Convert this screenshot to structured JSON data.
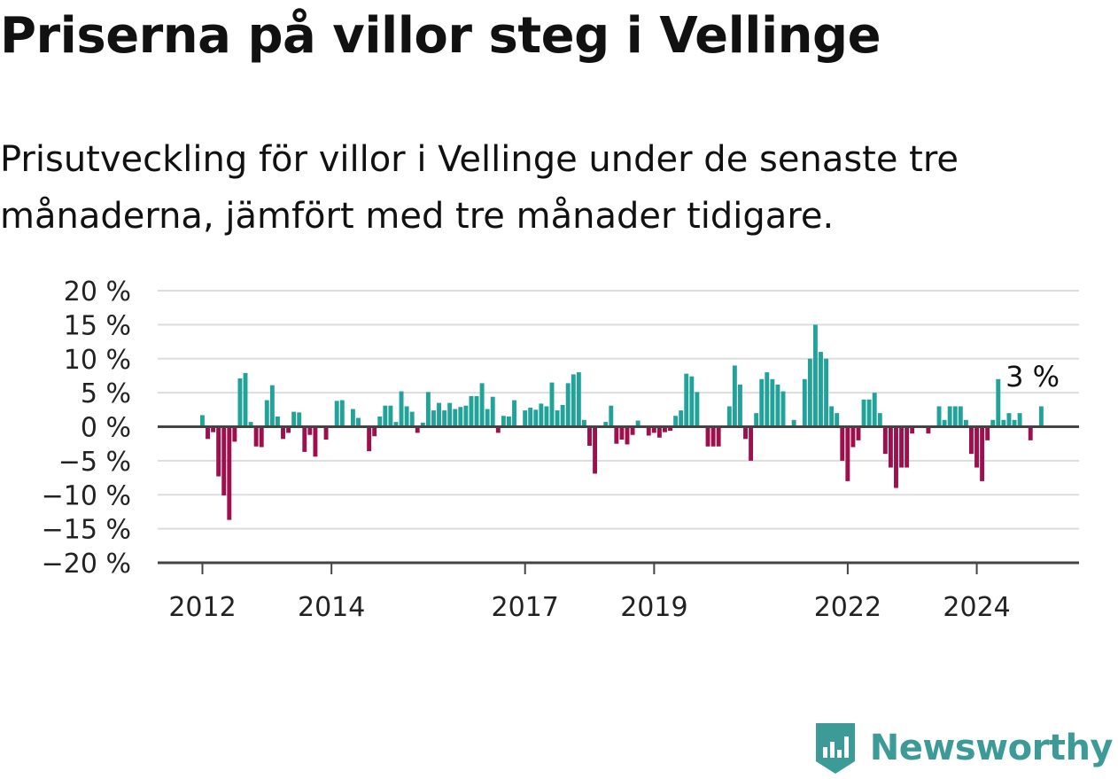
{
  "title": "Priserna på villor steg i Vellinge",
  "subtitle": "Prisutveckling för villor i Vellinge under de senaste tre månaderna, jämfört med tre månader tidigare.",
  "brand": {
    "name": "Newsworthy"
  },
  "colors": {
    "positive": "#21a39a",
    "negative": "#9e0f4e",
    "grid": "#dddddd",
    "axis": "#444444",
    "text": "#222222"
  },
  "chart_data": {
    "type": "bar",
    "y_unit": "%",
    "ylim": [
      -20,
      20
    ],
    "y_ticks": [
      "20 %",
      "15 %",
      "10 %",
      "5 %",
      "0 %",
      "−5 %",
      "−10 %",
      "−15 %",
      "−20 %"
    ],
    "x_ticks": [
      "2012",
      "2014",
      "2017",
      "2019",
      "2022",
      "2024"
    ],
    "grid": true,
    "annotation": "3 %",
    "x_start": "2012-01",
    "values": [
      1.7,
      -1.8,
      -0.8,
      -7.3,
      -10.1,
      -13.7,
      -2.2,
      7.1,
      7.9,
      0.7,
      -2.9,
      -3.0,
      3.9,
      6.1,
      1.5,
      -1.8,
      -0.9,
      2.2,
      2.1,
      -3.7,
      -1.2,
      -4.4,
      0.0,
      -1.9,
      0.0,
      3.8,
      3.9,
      0.0,
      2.6,
      1.3,
      0.0,
      -3.6,
      -1.4,
      1.5,
      3.1,
      3.1,
      0.7,
      5.2,
      3.0,
      2.2,
      -0.9,
      0.6,
      5.1,
      2.4,
      3.5,
      2.4,
      3.5,
      2.6,
      2.9,
      3.1,
      4.5,
      4.5,
      6.4,
      2.6,
      4.4,
      -0.9,
      1.6,
      1.5,
      3.9,
      0.0,
      2.4,
      2.8,
      2.5,
      3.4,
      3.0,
      6.5,
      2.4,
      3.2,
      6.4,
      7.7,
      8.0,
      1.0,
      -2.8,
      -6.9,
      0.0,
      0.7,
      3.1,
      -2.5,
      -1.9,
      -2.6,
      -1.2,
      0.9,
      0.0,
      -1.3,
      -0.9,
      -1.6,
      -0.8,
      -0.6,
      1.6,
      2.4,
      7.8,
      7.4,
      5.1,
      0.0,
      -2.9,
      -2.9,
      -2.9,
      0.0,
      3.0,
      9.0,
      6.2,
      -1.8,
      -5.0,
      2.0,
      7.0,
      8.0,
      7.0,
      6.2,
      5.2,
      0.0,
      1.0,
      0.0,
      7.0,
      10.0,
      15.0,
      11.0,
      10.0,
      3.0,
      2.0,
      -5.0,
      -8.0,
      -3.0,
      -2.0,
      4.0,
      4.0,
      5.0,
      2.0,
      -4.0,
      -6.0,
      -9.0,
      -6.0,
      -6.0,
      -1.0,
      0.0,
      0.0,
      -1.0,
      0.0,
      3.0,
      1.0,
      3.0,
      3.0,
      3.0,
      1.0,
      -4.0,
      -6.0,
      -8.0,
      -2.0,
      1.0,
      7.0,
      1.0,
      2.0,
      1.0,
      2.0,
      0.0,
      -2.0,
      0.0,
      3.0
    ]
  }
}
